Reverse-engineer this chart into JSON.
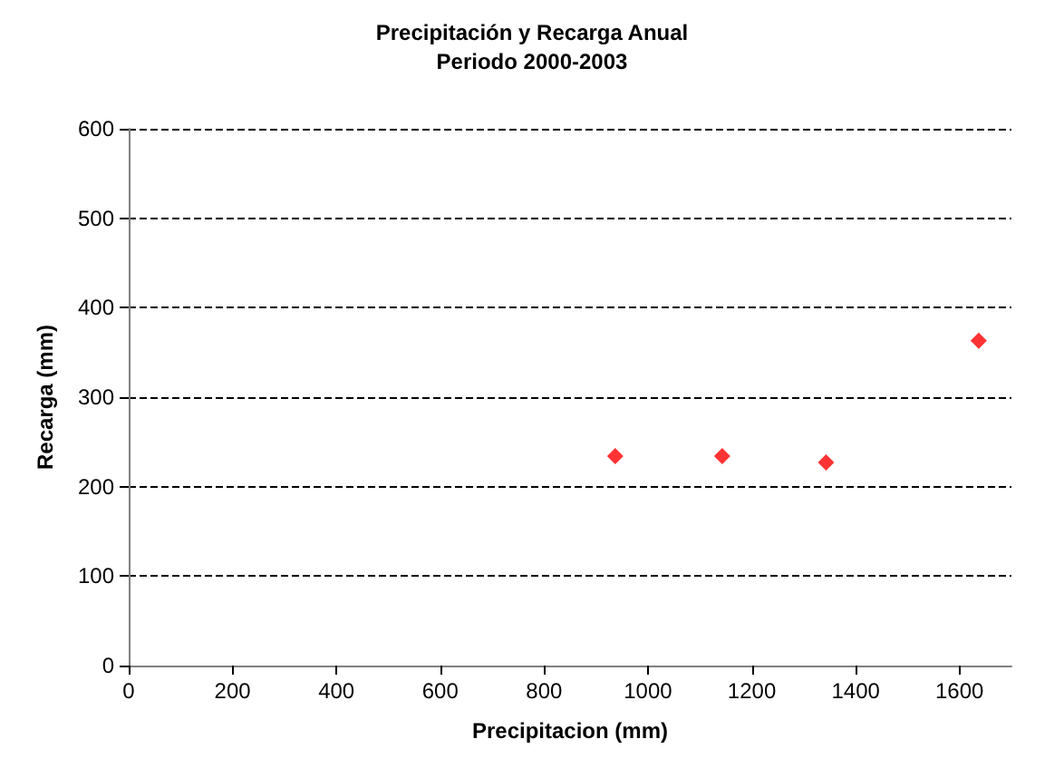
{
  "chart_data": {
    "type": "scatter",
    "title": "Precipitación y Recarga Anual\nPeriodo 2000-2003",
    "xlabel": "Precipitacion (mm)",
    "ylabel": "Recarga (mm)",
    "x": [
      937,
      1143,
      1343,
      1637
    ],
    "series": [
      {
        "color": "#ff0000",
        "values": [
          234,
          234,
          227,
          363
        ]
      }
    ],
    "xlim": [
      0,
      1700
    ],
    "xticks": [
      0,
      200,
      400,
      600,
      800,
      1000,
      1200,
      1400,
      1600
    ],
    "ylim": [
      0,
      600
    ],
    "yticks": [
      0,
      100,
      200,
      300,
      400,
      500,
      600
    ],
    "grid": "y",
    "line_style": "dashed",
    "marker": "diamond"
  }
}
